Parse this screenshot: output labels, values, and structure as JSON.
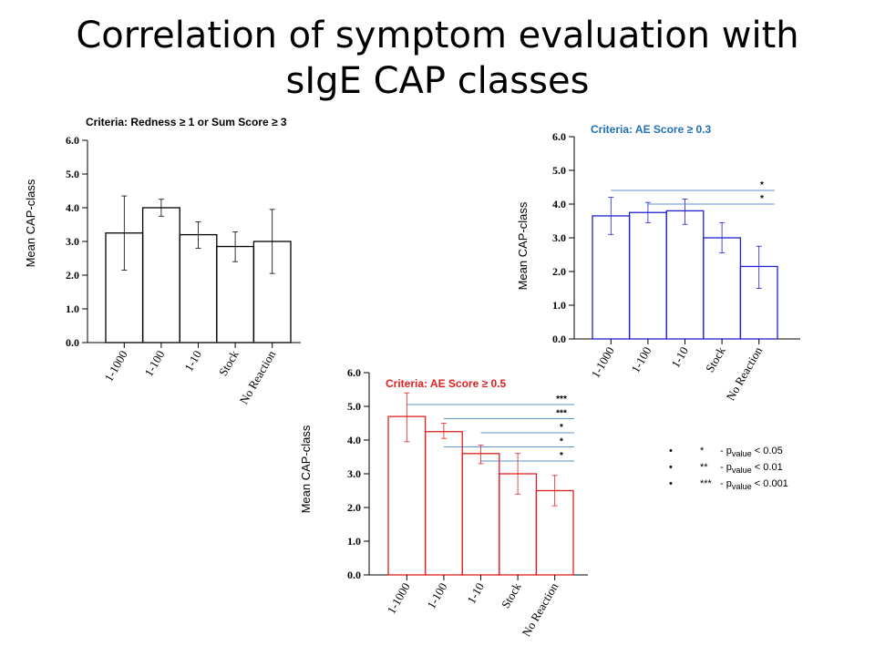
{
  "slide": {
    "title_line1": "Correlation of symptom evaluation with",
    "title_line2": "sIgE CAP classes"
  },
  "chart_data": [
    {
      "type": "bar",
      "title": "Criteria: Redness ≥ 1 or Sum Score ≥ 3",
      "title_color": "#000000",
      "bar_color": "#000000",
      "ylabel": "Mean CAP-class",
      "ylim": [
        0,
        6
      ],
      "yticks": [
        "0.0",
        "1.0",
        "2.0",
        "3.0",
        "4.0",
        "5.0",
        "6.0"
      ],
      "categories": [
        "1-1000",
        "1-100",
        "1-10",
        "Stock",
        "No Reaction"
      ],
      "values": [
        3.25,
        4.0,
        3.2,
        2.85,
        3.0
      ],
      "error_low": [
        2.15,
        3.75,
        2.8,
        2.4,
        2.05
      ],
      "error_high": [
        4.35,
        4.25,
        3.58,
        3.28,
        3.95
      ],
      "significance": []
    },
    {
      "type": "bar",
      "title": "Criteria: AE Score ≥ 0.3",
      "title_color": "#1f6fb5",
      "bar_color": "#2020d0",
      "ylabel": "Mean CAP-class",
      "ylim": [
        0,
        6
      ],
      "yticks": [
        "0.0",
        "1.0",
        "2.0",
        "3.0",
        "4.0",
        "5.0",
        "6.0"
      ],
      "categories": [
        "1-1000",
        "1-100",
        "1-10",
        "Stock",
        "No Reaction"
      ],
      "values": [
        3.65,
        3.75,
        3.8,
        3.0,
        2.15
      ],
      "error_low": [
        3.1,
        3.45,
        3.4,
        2.55,
        1.5
      ],
      "error_high": [
        4.2,
        4.05,
        4.15,
        3.45,
        2.75
      ],
      "significance": [
        {
          "from": 1,
          "to": 4,
          "label": "*"
        },
        {
          "from": 2,
          "to": 4,
          "label": "*"
        }
      ]
    },
    {
      "type": "bar",
      "title": "Criteria: AE Score ≥ 0.5",
      "title_color": "#e02020",
      "bar_color": "#e02020",
      "ylabel": "Mean CAP-class",
      "ylim": [
        0,
        6
      ],
      "yticks": [
        "0.0",
        "1.0",
        "2.0",
        "3.0",
        "4.0",
        "5.0",
        "6.0"
      ],
      "categories": [
        "1-1000",
        "1-100",
        "1-10",
        "Stock",
        "No Reaction"
      ],
      "values": [
        4.7,
        4.25,
        3.6,
        3.0,
        2.5
      ],
      "error_low": [
        3.95,
        4.05,
        3.3,
        2.4,
        2.05
      ],
      "error_high": [
        5.4,
        4.5,
        3.85,
        3.6,
        2.95
      ],
      "significance": [
        {
          "from": 1,
          "to": 4,
          "label": "***"
        },
        {
          "from": 2,
          "to": 4,
          "label": "***"
        },
        {
          "from": 3,
          "to": 4,
          "label": "*"
        },
        {
          "from": 2,
          "to": 3,
          "label": "*"
        },
        {
          "from": 3,
          "to": 3,
          "label": "*"
        }
      ]
    }
  ],
  "legend": {
    "bullet": "•",
    "items": [
      {
        "symbol": "*",
        "sep": "- p",
        "sub": "value",
        "rest": "< 0.05"
      },
      {
        "symbol": "**",
        "sep": "- p",
        "sub": "value",
        "rest": "< 0.01"
      },
      {
        "symbol": "***",
        "sep": "- p",
        "sub": "value",
        "rest": "< 0.001"
      }
    ]
  }
}
